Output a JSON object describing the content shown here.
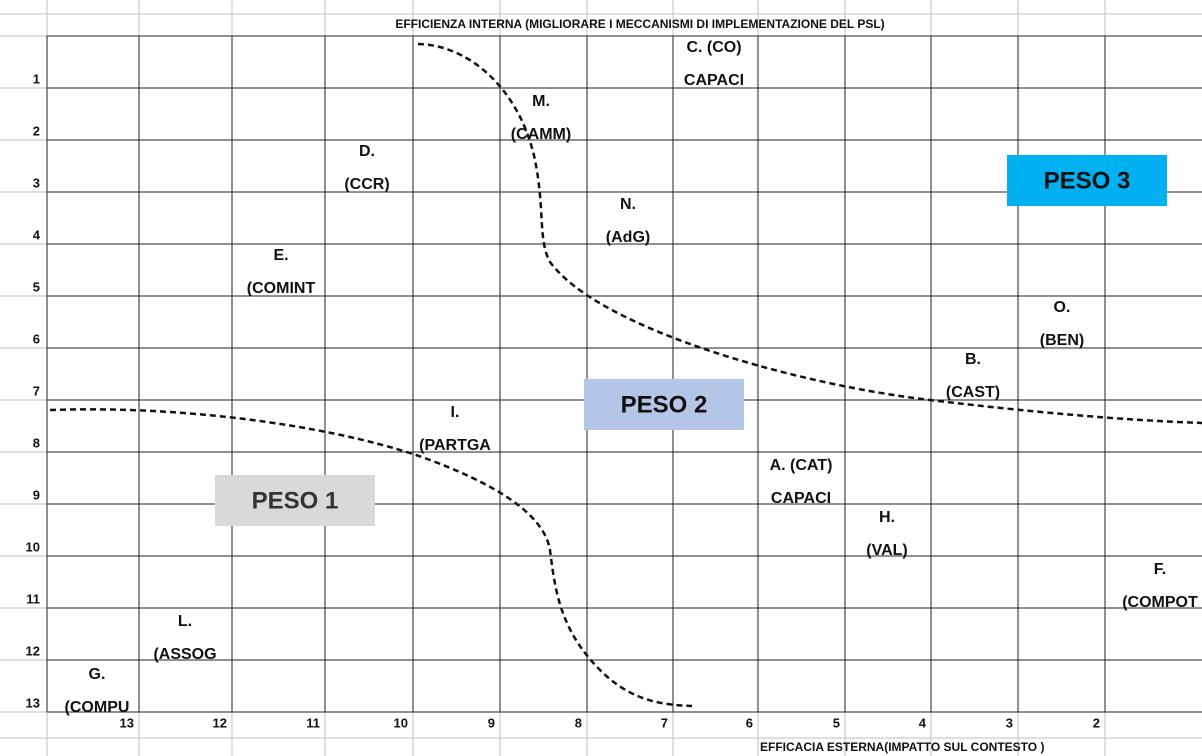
{
  "header": {
    "title": "EFFICIENZA INTERNA (MIGLIORARE I MECCANISMI DI IMPLEMENTAZIONE DEL PSL)"
  },
  "footer": {
    "title": "EFFICACIA ESTERNA(IMPATTO SUL CONTESTO )"
  },
  "row_labels": [
    "1",
    "2",
    "3",
    "4",
    "5",
    "6",
    "7",
    "8",
    "9",
    "10",
    "11",
    "12",
    "13"
  ],
  "col_labels": [
    "13",
    "12",
    "11",
    "10",
    "9",
    "8",
    "7",
    "6",
    "5",
    "4",
    "3",
    "2"
  ],
  "nodes": [
    {
      "lines": [
        "C. (CO)",
        "CAPACI"
      ]
    },
    {
      "lines": [
        "M.",
        "(CAMM)"
      ]
    },
    {
      "lines": [
        "D.",
        "(CCR)"
      ]
    },
    {
      "lines": [
        "N.",
        "(AdG)"
      ]
    },
    {
      "lines": [
        "E.",
        "(COMINT"
      ]
    },
    {
      "lines": [
        "O.",
        "(BEN)"
      ]
    },
    {
      "lines": [
        "B.",
        "(CAST)"
      ]
    },
    {
      "lines": [
        "I.",
        "(PARTGA"
      ]
    },
    {
      "lines": [
        "A. (CAT)",
        "CAPACI"
      ]
    },
    {
      "lines": [
        "H.",
        "(VAL)"
      ]
    },
    {
      "lines": [
        "F.",
        "(COMPOT"
      ]
    },
    {
      "lines": [
        "L.",
        "(ASSOG"
      ]
    },
    {
      "lines": [
        "G.",
        "(COMPU"
      ]
    }
  ],
  "weights": [
    {
      "label": "PESO 3",
      "color": "#00b0f0"
    },
    {
      "label": "PESO 2",
      "color": "#b4c6e7"
    },
    {
      "label": "PESO 1",
      "color": "#d9d9d9"
    }
  ]
}
